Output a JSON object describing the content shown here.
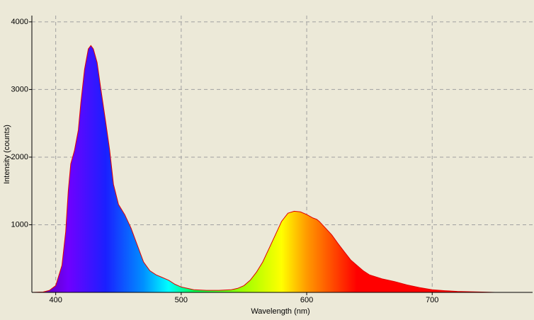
{
  "chart_data": {
    "type": "area",
    "x_label": "Wavelength (nm)",
    "y_label": "Intensity (counts)",
    "x": [
      381,
      390,
      395,
      400,
      405,
      408,
      410,
      412,
      415,
      418,
      420,
      423,
      426,
      428,
      430,
      433,
      436,
      440,
      443,
      446,
      450,
      455,
      460,
      465,
      470,
      475,
      480,
      485,
      490,
      495,
      500,
      510,
      520,
      530,
      540,
      545,
      550,
      555,
      560,
      565,
      570,
      575,
      580,
      585,
      590,
      595,
      600,
      605,
      608,
      610,
      615,
      620,
      625,
      630,
      635,
      640,
      645,
      650,
      660,
      670,
      680,
      690,
      700,
      710,
      720,
      740,
      750
    ],
    "values": [
      0,
      5,
      30,
      100,
      400,
      900,
      1500,
      1900,
      2100,
      2400,
      2800,
      3300,
      3600,
      3650,
      3600,
      3400,
      3000,
      2500,
      2100,
      1600,
      1300,
      1150,
      950,
      700,
      450,
      320,
      260,
      220,
      180,
      120,
      80,
      40,
      30,
      30,
      40,
      60,
      100,
      180,
      300,
      450,
      650,
      850,
      1050,
      1170,
      1200,
      1190,
      1150,
      1100,
      1080,
      1050,
      950,
      850,
      720,
      600,
      480,
      400,
      320,
      260,
      200,
      160,
      110,
      70,
      40,
      25,
      15,
      5,
      0
    ],
    "color": "#e00000",
    "xlim": [
      381,
      780
    ],
    "ylim": [
      0,
      4093
    ],
    "xticks": [
      400,
      500,
      600,
      700
    ],
    "yticks": [
      1000,
      2000,
      3000,
      4000
    ],
    "grid": true
  }
}
